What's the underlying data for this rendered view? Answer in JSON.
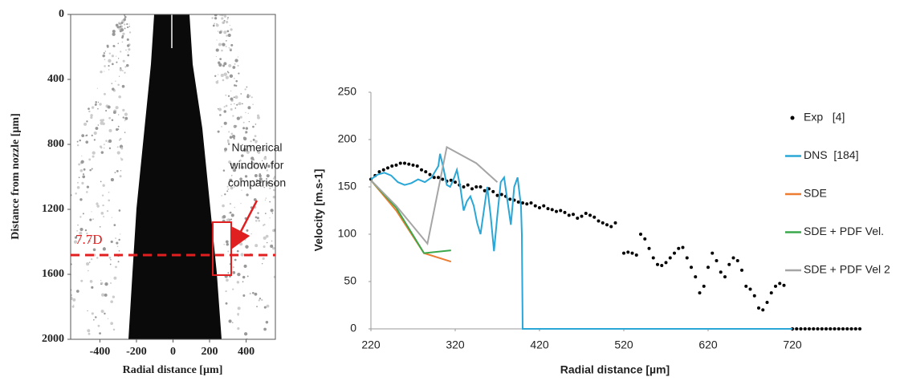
{
  "chart_data": [
    {
      "type": "image",
      "xlabel": "Radial distance [µm]",
      "ylabel": "Distance from nozzle [µm]",
      "xlim": [
        -560,
        560
      ],
      "xticks": [
        -400,
        -200,
        0,
        200,
        400
      ],
      "ylim": [
        0,
        2000
      ],
      "yticks": [
        0,
        400,
        800,
        1200,
        1600,
        2000
      ],
      "y_inverted": true,
      "line_label": "7.7D",
      "window_label": [
        "Numerical",
        "window for",
        "comparison"
      ]
    },
    {
      "type": "line",
      "xlabel": "Radial distance [µm]",
      "ylabel": "Velocity [m.s-1]",
      "xlim": [
        220,
        800
      ],
      "xticks": [
        220,
        320,
        420,
        520,
        620,
        720
      ],
      "ylim": [
        0,
        250
      ],
      "yticks": [
        0,
        50,
        100,
        150,
        200,
        250
      ],
      "series": [
        {
          "name": "Exp   [4]",
          "color": "#000000",
          "mode": "markers",
          "x": [
            220,
            225,
            230,
            235,
            240,
            245,
            250,
            255,
            260,
            265,
            270,
            275,
            280,
            285,
            290,
            295,
            300,
            305,
            310,
            315,
            320,
            325,
            330,
            335,
            340,
            345,
            350,
            355,
            360,
            365,
            370,
            375,
            380,
            385,
            390,
            395,
            400,
            405,
            410,
            415,
            420,
            425,
            430,
            435,
            440,
            445,
            450,
            455,
            460,
            465,
            470,
            475,
            480,
            485,
            490,
            495,
            500,
            505,
            510,
            520,
            525,
            530,
            535,
            540,
            545,
            550,
            555,
            560,
            565,
            570,
            575,
            580,
            585,
            590,
            595,
            600,
            605,
            610,
            615,
            620,
            625,
            630,
            635,
            640,
            645,
            650,
            655,
            660,
            665,
            670,
            675,
            680,
            685,
            690,
            695,
            700,
            705,
            710,
            720,
            725,
            730,
            735,
            740,
            745,
            750,
            755,
            760,
            765,
            770,
            775,
            780,
            785,
            790,
            795,
            800
          ],
          "values": [
            158,
            162,
            166,
            168,
            170,
            172,
            173,
            175,
            175,
            174,
            173,
            172,
            168,
            166,
            163,
            160,
            160,
            158,
            156,
            157,
            155,
            152,
            150,
            152,
            148,
            150,
            150,
            146,
            148,
            145,
            141,
            142,
            140,
            137,
            136,
            134,
            133,
            132,
            133,
            130,
            128,
            130,
            127,
            126,
            124,
            125,
            123,
            120,
            121,
            117,
            119,
            122,
            120,
            118,
            114,
            112,
            110,
            108,
            112,
            80,
            81,
            80,
            78,
            100,
            95,
            85,
            75,
            68,
            67,
            70,
            75,
            80,
            85,
            86,
            75,
            65,
            55,
            38,
            45,
            65,
            80,
            72,
            60,
            55,
            68,
            75,
            72,
            62,
            45,
            42,
            35,
            22,
            20,
            28,
            38,
            45,
            48,
            46,
            0,
            0,
            0,
            0,
            0,
            0,
            0,
            0,
            0,
            0,
            0,
            0,
            0,
            0,
            0,
            0,
            0
          ]
        },
        {
          "name": "DNS  [184]",
          "color": "#2aa7d6",
          "mode": "line",
          "x": [
            220,
            228,
            236,
            244,
            252,
            260,
            268,
            276,
            284,
            292,
            300,
            302,
            306,
            310,
            314,
            318,
            322,
            326,
            330,
            334,
            338,
            342,
            346,
            350,
            354,
            358,
            362,
            366,
            370,
            374,
            378,
            382,
            386,
            390,
            394,
            398,
            399,
            400,
            720
          ],
          "values": [
            158,
            163,
            165,
            162,
            155,
            152,
            154,
            158,
            155,
            160,
            172,
            185,
            170,
            152,
            150,
            158,
            168,
            150,
            125,
            135,
            140,
            130,
            112,
            100,
            125,
            150,
            120,
            82,
            120,
            155,
            160,
            135,
            110,
            150,
            160,
            130,
            100,
            0,
            0
          ]
        },
        {
          "name": "SDE",
          "color": "#ed7d31",
          "mode": "line",
          "x": [
            220,
            250,
            283,
            315
          ],
          "values": [
            157,
            125,
            80,
            71
          ]
        },
        {
          "name": "SDE + PDF Vel.",
          "color": "#3aa84a",
          "mode": "line",
          "x": [
            220,
            250,
            283,
            315
          ],
          "values": [
            157,
            128,
            80,
            83
          ]
        },
        {
          "name": "SDE + PDF Vel 2",
          "color": "#a5a5a5",
          "mode": "line",
          "x": [
            220,
            250,
            287,
            310,
            345,
            370
          ],
          "values": [
            157,
            130,
            90,
            192,
            175,
            155
          ]
        }
      ]
    }
  ]
}
